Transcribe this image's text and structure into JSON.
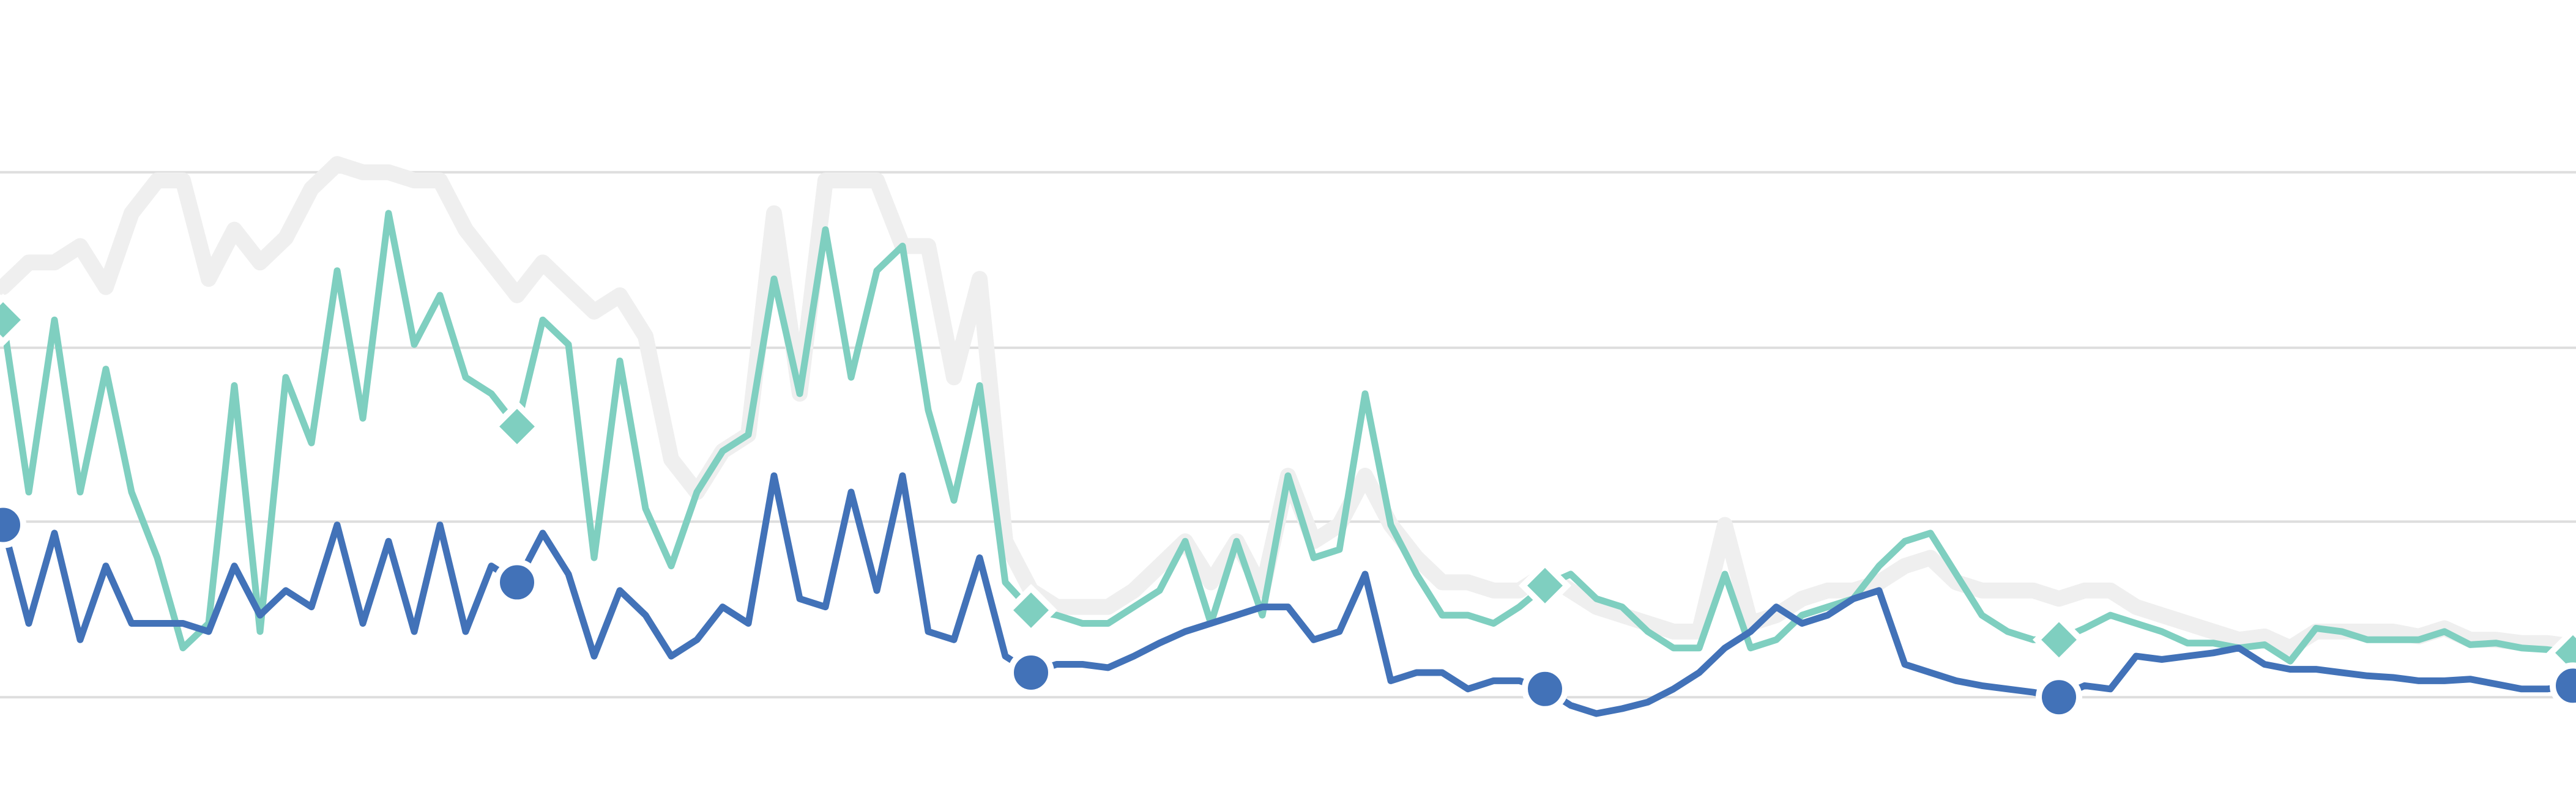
{
  "chart_data": {
    "type": "line",
    "x": [
      0,
      1,
      2,
      3,
      4,
      5,
      6,
      7,
      8,
      9,
      10,
      11,
      12,
      13,
      14,
      15,
      16,
      17,
      18,
      19,
      20,
      21,
      22,
      23,
      24,
      25,
      26,
      27,
      28,
      29,
      30,
      31,
      32,
      33,
      34,
      35,
      36,
      37,
      38,
      39,
      40,
      41,
      42,
      43,
      44,
      45,
      46,
      47,
      48,
      49,
      50,
      51,
      52,
      53,
      54,
      55,
      56,
      57,
      58,
      59,
      60,
      61,
      62,
      63,
      64,
      65,
      66,
      67,
      68,
      69,
      70,
      71,
      72,
      73,
      74,
      75,
      76,
      77,
      78,
      79,
      80,
      81,
      82,
      83,
      84,
      85,
      86,
      87,
      88,
      89,
      90,
      91,
      92,
      93,
      94,
      95,
      96,
      97,
      98,
      99,
      100
    ],
    "xlim": [
      0,
      100
    ],
    "ylim": [
      -70,
      425
    ],
    "yticks": [
      0,
      107,
      213,
      320
    ],
    "grid": true,
    "series": [
      {
        "color": "#efefef",
        "width": "wide",
        "values": [
          250,
          265,
          265,
          275,
          250,
          295,
          315,
          315,
          255,
          285,
          265,
          280,
          310,
          325,
          320,
          320,
          315,
          315,
          285,
          265,
          245,
          265,
          250,
          235,
          245,
          220,
          145,
          125,
          150,
          160,
          295,
          185,
          315,
          315,
          315,
          275,
          275,
          195,
          255,
          95,
          65,
          55,
          55,
          55,
          65,
          80,
          95,
          70,
          95,
          65,
          135,
          95,
          105,
          135,
          105,
          85,
          70,
          70,
          65,
          65,
          75,
          65,
          55,
          50,
          45,
          40,
          40,
          105,
          45,
          50,
          60,
          65,
          65,
          70,
          80,
          85,
          70,
          65,
          65,
          65,
          60,
          65,
          65,
          55,
          50,
          45,
          40,
          35,
          37,
          30,
          40,
          40,
          40,
          40,
          37,
          42,
          35,
          35,
          33,
          33,
          31
        ]
      },
      {
        "color": "#7fcfc0",
        "marker": "diamond",
        "markevery": 20,
        "values": [
          230,
          125,
          230,
          125,
          200,
          125,
          85,
          30,
          45,
          190,
          40,
          195,
          155,
          260,
          170,
          295,
          215,
          245,
          195,
          185,
          165,
          230,
          215,
          85,
          205,
          115,
          80,
          125,
          150,
          160,
          255,
          185,
          285,
          195,
          260,
          275,
          175,
          120,
          190,
          70,
          53,
          50,
          45,
          45,
          55,
          65,
          95,
          45,
          95,
          50,
          135,
          85,
          90,
          185,
          105,
          75,
          50,
          50,
          45,
          55,
          68,
          75,
          60,
          55,
          40,
          30,
          30,
          75,
          30,
          35,
          50,
          55,
          60,
          80,
          95,
          100,
          75,
          50,
          40,
          35,
          35,
          42,
          50,
          45,
          40,
          33,
          33,
          30,
          32,
          22,
          42,
          40,
          35,
          35,
          35,
          40,
          32,
          33,
          30,
          29,
          27
        ]
      },
      {
        "color": "#4272b8",
        "marker": "circle",
        "markevery": 20,
        "values": [
          105,
          45,
          100,
          35,
          80,
          45,
          45,
          45,
          40,
          80,
          50,
          65,
          55,
          105,
          45,
          95,
          40,
          105,
          40,
          80,
          70,
          100,
          75,
          25,
          65,
          50,
          25,
          35,
          55,
          45,
          135,
          60,
          55,
          125,
          65,
          135,
          40,
          35,
          85,
          25,
          15,
          20,
          20,
          18,
          25,
          33,
          40,
          45,
          50,
          55,
          55,
          35,
          40,
          75,
          10,
          15,
          15,
          5,
          10,
          10,
          5,
          -5,
          -10,
          -7,
          -3,
          5,
          15,
          30,
          40,
          55,
          45,
          50,
          60,
          65,
          20,
          15,
          10,
          7,
          5,
          3,
          0,
          7,
          5,
          25,
          23,
          25,
          27,
          30,
          20,
          17,
          17,
          15,
          13,
          12,
          10,
          10,
          11,
          8,
          5,
          5,
          7
        ]
      }
    ]
  }
}
